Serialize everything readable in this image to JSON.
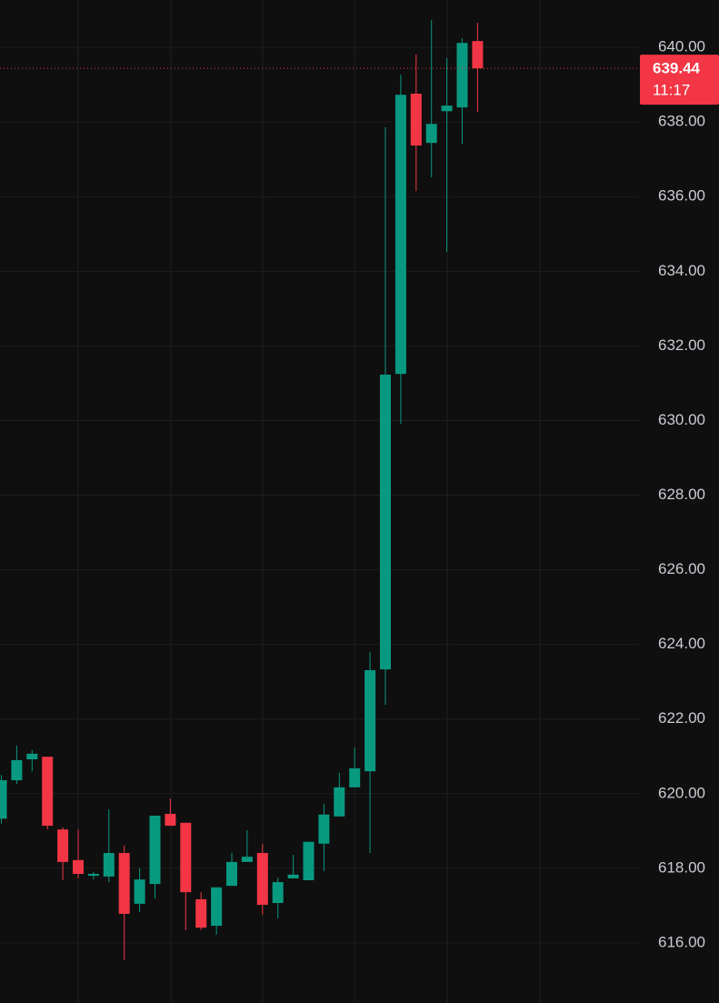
{
  "chart_data": {
    "type": "candlestick",
    "categories": [
      null,
      null,
      null,
      null,
      null,
      null,
      null,
      null,
      null,
      null,
      null,
      null,
      null,
      null,
      null,
      null,
      null,
      null,
      null,
      null,
      null,
      null,
      null,
      null,
      null,
      null,
      null,
      null,
      null,
      null,
      null,
      null
    ],
    "open": [
      619.33,
      620.36,
      620.92,
      620.99,
      619.04,
      618.22,
      617.8,
      617.78,
      618.41,
      617.05,
      617.58,
      619.46,
      619.22,
      617.17,
      616.46,
      617.53,
      618.17,
      618.41,
      617.07,
      617.73,
      617.68,
      618.66,
      619.39,
      620.17,
      620.6,
      623.33,
      631.25,
      638.76,
      637.44,
      638.29,
      638.39,
      640.17
    ],
    "high": [
      620.5,
      621.29,
      621.17,
      620.99,
      619.1,
      619.04,
      617.9,
      619.58,
      618.61,
      618.0,
      619.41,
      619.87,
      619.22,
      617.36,
      617.49,
      618.41,
      619.02,
      618.66,
      617.75,
      618.36,
      618.71,
      619.73,
      620.56,
      621.24,
      623.8,
      637.86,
      639.27,
      639.81,
      640.73,
      639.71,
      640.24,
      640.66
    ],
    "low": [
      619.2,
      620.26,
      620.6,
      619.04,
      617.68,
      617.73,
      617.7,
      617.63,
      615.54,
      616.83,
      617.19,
      619.14,
      616.34,
      616.34,
      616.22,
      617.53,
      618.17,
      616.75,
      616.66,
      617.73,
      617.68,
      617.92,
      619.39,
      620.17,
      618.41,
      622.38,
      629.91,
      636.15,
      636.52,
      634.52,
      637.42,
      638.27
    ],
    "close": [
      620.36,
      620.9,
      621.07,
      619.14,
      618.17,
      617.85,
      617.85,
      618.41,
      616.78,
      617.7,
      619.41,
      619.14,
      617.36,
      616.41,
      617.49,
      618.17,
      618.31,
      617.02,
      617.63,
      617.83,
      618.71,
      619.44,
      620.17,
      620.68,
      623.31,
      631.23,
      638.73,
      637.37,
      637.95,
      638.44,
      640.12,
      639.44
    ],
    "up_color": "#089981",
    "down_color": "#f23645",
    "ylim": [
      614.39,
      641.27
    ],
    "yticks": [
      {
        "value": 616,
        "label": "616.00"
      },
      {
        "value": 618,
        "label": "618.00"
      },
      {
        "value": 620,
        "label": "620.00"
      },
      {
        "value": 622,
        "label": "622.00"
      },
      {
        "value": 624,
        "label": "624.00"
      },
      {
        "value": 626,
        "label": "626.00"
      },
      {
        "value": 628,
        "label": "628.00"
      },
      {
        "value": 630,
        "label": "630.00"
      },
      {
        "value": 632,
        "label": "632.00"
      },
      {
        "value": 634,
        "label": "634.00"
      },
      {
        "value": 636,
        "label": "636.00"
      },
      {
        "value": 638,
        "label": "638.00"
      },
      {
        "value": 640,
        "label": "640.00"
      }
    ],
    "grid": true,
    "last_price": 639.44,
    "countdown": "11:17"
  }
}
